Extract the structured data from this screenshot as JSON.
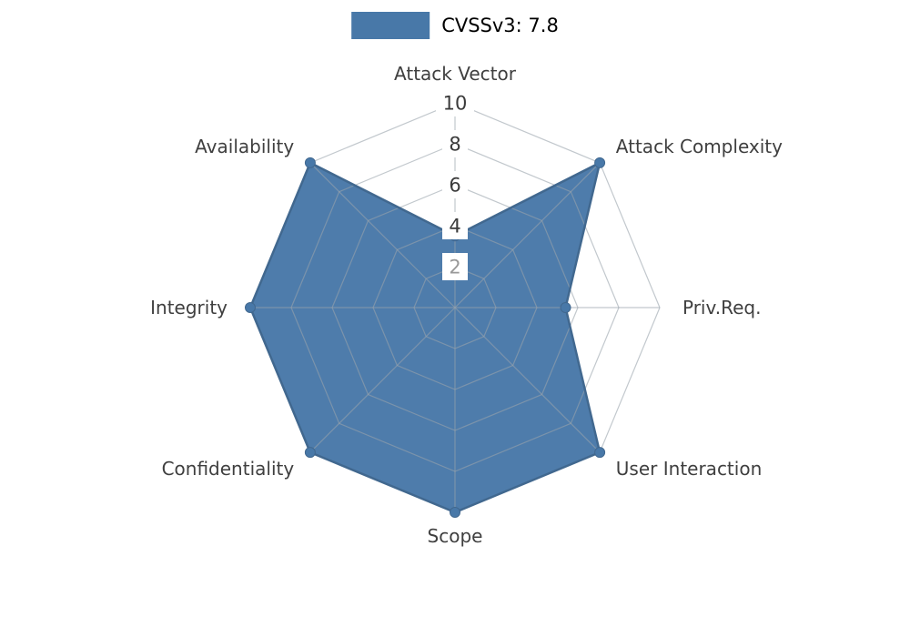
{
  "chart_data": {
    "type": "radar",
    "title": "",
    "legend": {
      "label": "CVSSv3: 7.8",
      "position": "top-center"
    },
    "axes": [
      "Attack Vector",
      "Attack Complexity",
      "Priv.Req.",
      "User Interaction",
      "Scope",
      "Confidentiality",
      "Integrity",
      "Availability"
    ],
    "values": [
      3.5,
      10,
      5.4,
      10,
      10,
      10,
      10,
      10
    ],
    "ticks": [
      2,
      4,
      6,
      8,
      10
    ],
    "tick_colors": [
      "#999999",
      "#3a3a3a",
      "#3a3a3a",
      "#3a3a3a",
      "#3a3a3a"
    ],
    "rlim": [
      0,
      10
    ],
    "grid": true,
    "colors": {
      "background": "#ffffff",
      "fill": "#4878a8",
      "stroke": "#41688f",
      "grid": "#9aa3ab",
      "axis_label": "#3f3f3f",
      "legend_text": "#000000",
      "tick_box_bg": "#ffffff"
    }
  }
}
